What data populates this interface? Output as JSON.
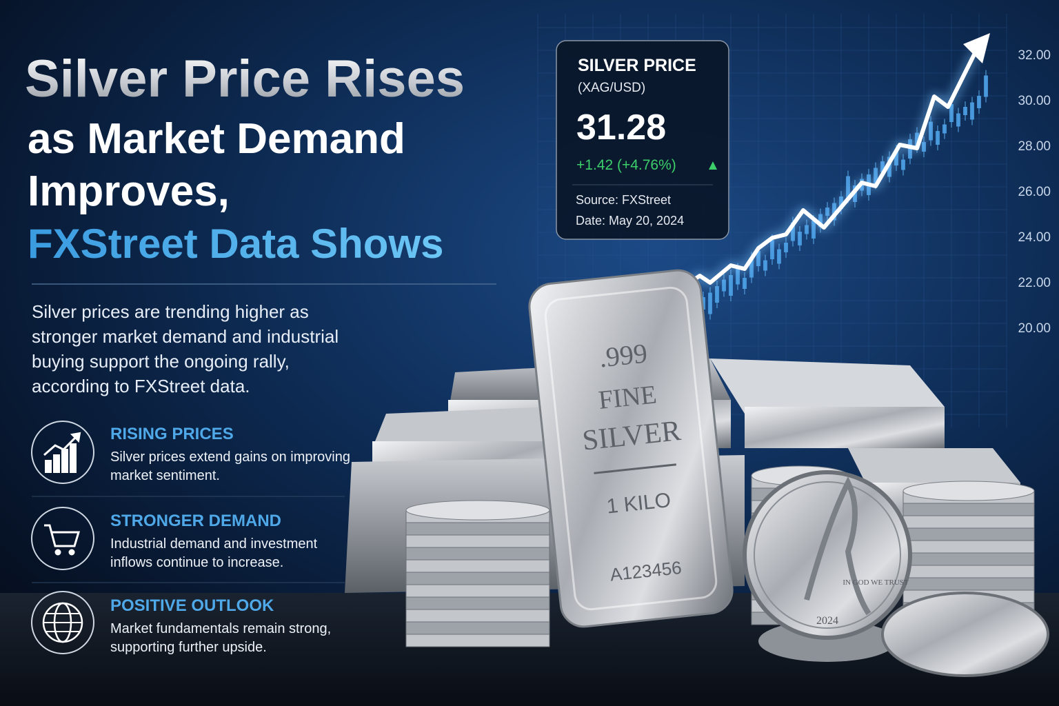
{
  "headline": {
    "line1": "Silver Price Rises",
    "line2": "as Market Demand",
    "line3": "Improves,",
    "line4": "FXStreet Data Shows"
  },
  "summary": "Silver prices are trending higher as stronger market demand and industrial buying support the ongoing rally, according to FXStreet data.",
  "features": [
    {
      "title": "RISING PRICES",
      "text": "Silver prices extend gains on improving market sentiment."
    },
    {
      "title": "STRONGER DEMAND",
      "text": "Industrial demand and investment inflows continue to increase."
    },
    {
      "title": "POSITIVE OUTLOOK",
      "text": "Market fundamentals remain strong, supporting further upside."
    }
  ],
  "price_card": {
    "title": "SILVER PRICE",
    "pair": "(XAG/USD)",
    "price": "31.28",
    "change": "+1.42 (+4.76%)",
    "source": "Source: FXStreet",
    "date": "Date: May 20, 2024"
  },
  "axis_labels": [
    "32.00",
    "30.00",
    "28.00",
    "26.00",
    "24.00",
    "22.00",
    "20.00"
  ],
  "bar": {
    "purity": ".999",
    "line1": "FINE",
    "line2": "SILVER",
    "weight": "1 KILO",
    "serial": "A123456"
  },
  "coin": {
    "motto": "IN GOD WE TRUST",
    "year": "2024"
  }
}
